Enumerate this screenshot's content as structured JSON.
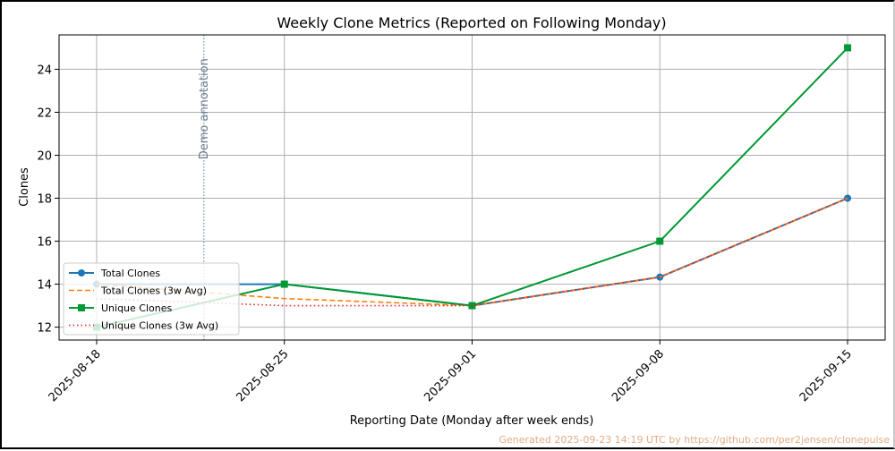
{
  "chart_data": {
    "type": "line",
    "title": "Weekly Clone Metrics (Reported on Following Monday)",
    "xlabel": "Reporting Date (Monday after week ends)",
    "ylabel": "Clones",
    "x": [
      "2025-08-18",
      "2025-08-25",
      "2025-09-01",
      "2025-09-08",
      "2025-09-15"
    ],
    "ylim": [
      11.4,
      25.6
    ],
    "yticks": [
      12,
      14,
      16,
      18,
      20,
      22,
      24
    ],
    "grid": true,
    "legend_position": "lower-left",
    "series": [
      {
        "name": "Total Clones",
        "values": [
          14,
          14,
          13,
          14.33,
          18
        ],
        "color": "#1f77b4",
        "style": "solid",
        "marker": "circle"
      },
      {
        "name": "Total Clones (3w Avg)",
        "values": [
          14,
          13.33,
          13,
          14.33,
          18
        ],
        "color": "#ff7f0e",
        "style": "dashed",
        "marker": "none"
      },
      {
        "name": "Unique Clones",
        "values": [
          12,
          14,
          13,
          16,
          25
        ],
        "color": "#009933",
        "style": "solid",
        "marker": "square"
      },
      {
        "name": "Unique Clones (3w Avg)",
        "values": [
          13.33,
          13,
          13,
          14.33,
          18
        ],
        "color": "#e8202a",
        "style": "dotted",
        "marker": "none"
      }
    ],
    "annotations": [
      {
        "text": "Demo annotation",
        "x_date": "2025-08-22",
        "color": "#4a78a8"
      }
    ]
  },
  "footer": {
    "text": "Generated 2025-09-23 14:19 UTC by https://github.com/per2jensen/clonepulse"
  }
}
